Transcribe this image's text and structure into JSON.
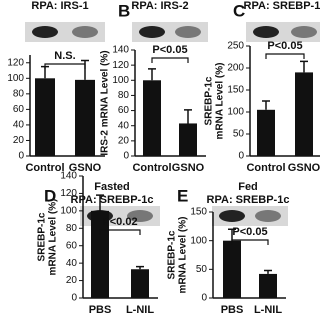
{
  "chart_data": [
    {
      "type": "bar",
      "title": "RPA: IRS-1",
      "categories": [
        "Control",
        "GSNO"
      ],
      "values": [
        100,
        98
      ],
      "errors": [
        15,
        25
      ],
      "color": "#111111",
      "ylim": [
        0,
        130
      ],
      "yticks": [
        0,
        20,
        40,
        60,
        80,
        100,
        120
      ],
      "annotation": "N.S."
    },
    {
      "type": "bar",
      "panel": "B",
      "title": "RPA: IRS-2",
      "y_label": [
        "IRS-2 mRNA Level (%)"
      ],
      "categories": [
        "Control",
        "GSNO"
      ],
      "values": [
        100,
        43
      ],
      "errors": [
        15,
        18
      ],
      "color": "#111111",
      "ylim": [
        0,
        140
      ],
      "yticks": [
        0,
        20,
        40,
        60,
        80,
        100,
        120,
        140
      ],
      "annotation": "P<0.05"
    },
    {
      "type": "bar",
      "panel": "C",
      "title": "RPA: SREBP-1c",
      "y_label": [
        "SREBP-1c",
        "mRNA Level (%)"
      ],
      "categories": [
        "Control",
        "GSNO"
      ],
      "values": [
        105,
        190
      ],
      "errors": [
        20,
        25
      ],
      "color": "#111111",
      "ylim": [
        0,
        250
      ],
      "yticks": [
        0,
        50,
        100,
        150,
        200,
        250
      ],
      "annotation": "P<0.05"
    },
    {
      "type": "bar",
      "panel": "D",
      "subtitle": "Fasted",
      "title": "RPA: SREBP-1c",
      "y_label": [
        "SREBP-1c",
        "mRNA Level (%)"
      ],
      "categories": [
        "PBS",
        "L-NIL"
      ],
      "values": [
        100,
        33
      ],
      "errors": [
        18,
        3
      ],
      "color": "#111111",
      "ylim": [
        0,
        140
      ],
      "yticks": [
        0,
        20,
        40,
        60,
        80,
        100,
        120,
        140
      ],
      "annotation": "P<0.02"
    },
    {
      "type": "bar",
      "panel": "E",
      "subtitle": "Fed",
      "title": "RPA: SREBP-1c",
      "y_label": [
        "SREBP-1c",
        "mRNA Level (%)"
      ],
      "categories": [
        "PBS",
        "L-NIL"
      ],
      "values": [
        100,
        42
      ],
      "errors": [
        20,
        6
      ],
      "color": "#111111",
      "ylim": [
        0,
        150
      ],
      "yticks": [
        0,
        50,
        100,
        150
      ],
      "annotation": "P<0.05"
    }
  ]
}
